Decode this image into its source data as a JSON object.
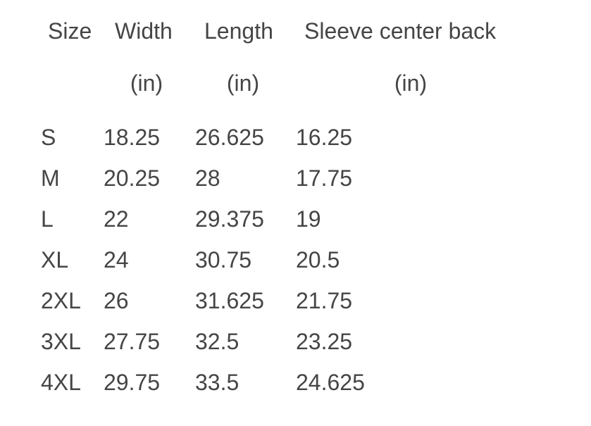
{
  "headers": [
    "Size",
    "Width",
    "Length",
    "Sleeve center back"
  ],
  "units": [
    "",
    "(in)",
    "(in)",
    "(in)"
  ],
  "rows": [
    [
      "S",
      "18.25",
      "26.625",
      "16.25"
    ],
    [
      "M",
      "20.25",
      "28",
      "17.75"
    ],
    [
      "L",
      "22",
      "29.375",
      "19"
    ],
    [
      "XL",
      "24",
      "30.75",
      "20.5"
    ],
    [
      "2XL",
      "26",
      "31.625",
      "21.75"
    ],
    [
      "3XL",
      "27.75",
      "32.5",
      "23.25"
    ],
    [
      "4XL",
      "29.75",
      "33.5",
      "24.625"
    ]
  ]
}
